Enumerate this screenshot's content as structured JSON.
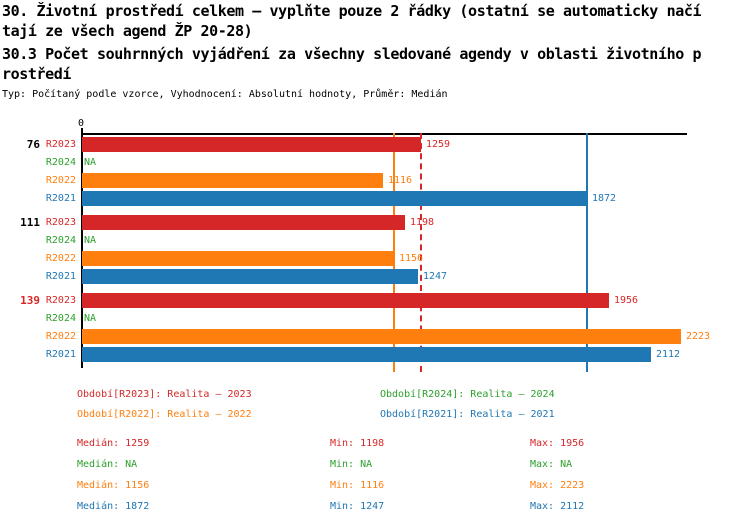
{
  "header": {
    "title_lines": [
      "30. Životní prostředí celkem – vyplňte pouze 2 řádky (ostatní se automaticky načí",
      "tají ze všech agend ŽP 20-28)",
      "30.3 Počet souhrnných vyjádření za všechny sledované agendy v oblasti životního p",
      "rostředí"
    ],
    "meta": "Typ: Počítaný podle vzorce, Vyhodnocení: Absolutní hodnoty, Průměr: Medián"
  },
  "colors": {
    "red": "#d62728",
    "green": "#2ca02c",
    "orange": "#ff7f0e",
    "blue": "#1f77b4",
    "axis": "#000000",
    "group_label_default": "#000000",
    "group_label_highlight": "#d62728"
  },
  "chart_data": {
    "type": "bar",
    "orientation": "horizontal",
    "title": "30.3 Počet souhrnných vyjádření za všechny sledované agendy v oblasti životního prostředí",
    "na_text": "NA",
    "axis": {
      "min": 0,
      "max": 2244,
      "origin_tick_label": "0",
      "grid": false
    },
    "series": [
      {
        "id": "R2023",
        "label": "R2023",
        "color": "#d62728",
        "median": 1259,
        "median_line_style": "dashed"
      },
      {
        "id": "R2024",
        "label": "R2024",
        "color": "#2ca02c",
        "median": null,
        "median_line_style": "none"
      },
      {
        "id": "R2022",
        "label": "R2022",
        "color": "#ff7f0e",
        "median": 1156,
        "median_line_style": "solid"
      },
      {
        "id": "R2021",
        "label": "R2021",
        "color": "#1f77b4",
        "median": 1872,
        "median_line_style": "solid"
      }
    ],
    "groups": [
      {
        "label": "76",
        "highlight": false,
        "values": {
          "R2023": 1259,
          "R2024": null,
          "R2022": 1116,
          "R2021": 1872
        }
      },
      {
        "label": "111",
        "highlight": false,
        "values": {
          "R2023": 1198,
          "R2024": null,
          "R2022": 1156,
          "R2021": 1247
        }
      },
      {
        "label": "139",
        "highlight": true,
        "values": {
          "R2023": 1956,
          "R2024": null,
          "R2022": 2223,
          "R2021": 2112
        }
      }
    ]
  },
  "legend": {
    "rows": [
      [
        {
          "series": "R2023",
          "text": "Období[R2023]: Realita – 2023"
        },
        {
          "series": "R2024",
          "text": "Období[R2024]: Realita – 2024"
        }
      ],
      [
        {
          "series": "R2022",
          "text": "Období[R2022]: Realita – 2022"
        },
        {
          "series": "R2021",
          "text": "Období[R2021]: Realita – 2021"
        }
      ]
    ]
  },
  "stats": {
    "median_label": "Medián",
    "min_label": "Min",
    "max_label": "Max",
    "rows": [
      {
        "series": "R2023",
        "median": "1259",
        "min": "1198",
        "max": "1956"
      },
      {
        "series": "R2024",
        "median": "NA",
        "min": "NA",
        "max": "NA"
      },
      {
        "series": "R2022",
        "median": "1156",
        "min": "1116",
        "max": "2223"
      },
      {
        "series": "R2021",
        "median": "1872",
        "min": "1247",
        "max": "2112"
      }
    ]
  }
}
